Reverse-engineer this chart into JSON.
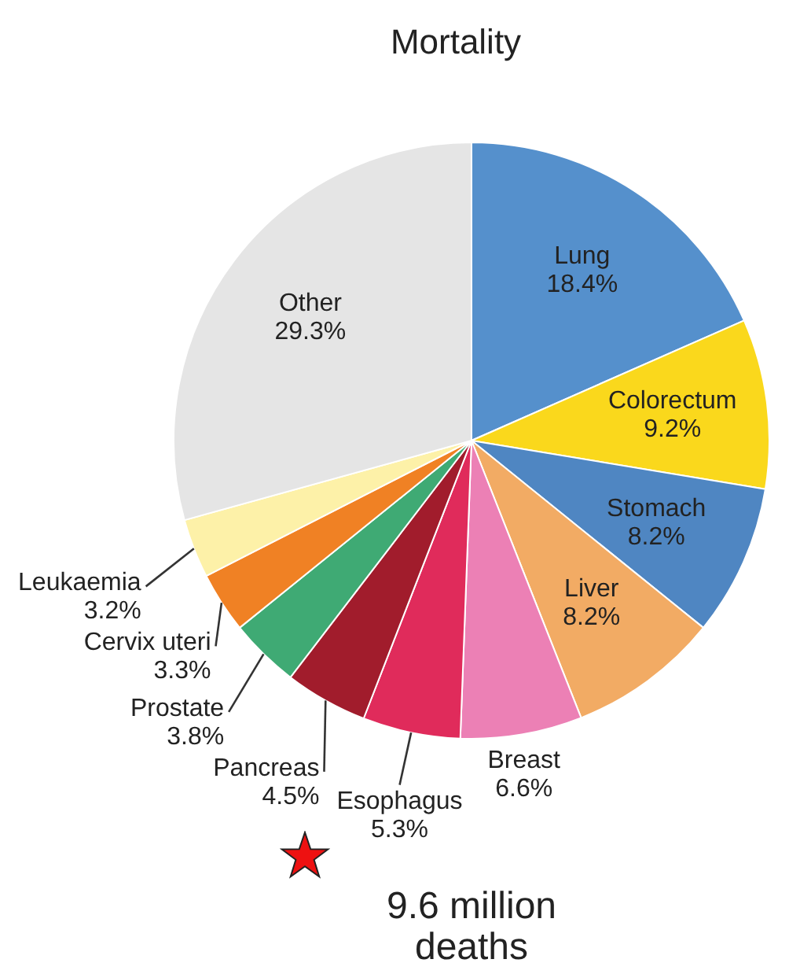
{
  "chart_data": {
    "type": "pie",
    "title": "Mortality",
    "categories": [
      "Lung",
      "Colorectum",
      "Stomach",
      "Liver",
      "Breast",
      "Esophagus",
      "Pancreas",
      "Prostate",
      "Cervix uteri",
      "Leukaemia",
      "Other"
    ],
    "values": [
      18.4,
      9.2,
      8.2,
      8.2,
      6.6,
      5.3,
      4.5,
      3.8,
      3.3,
      3.2,
      29.3
    ],
    "value_labels": [
      "18.4%",
      "9.2%",
      "8.2%",
      "8.2%",
      "6.6%",
      "5.3%",
      "4.5%",
      "3.8%",
      "3.3%",
      "3.2%",
      "29.3%"
    ],
    "colors": [
      "#5590cc",
      "#fad81c",
      "#4f86c2",
      "#f2ab64",
      "#ec80b5",
      "#e02b5b",
      "#a11c2c",
      "#3faa74",
      "#f08124",
      "#fdf1a8",
      "#e5e5e5"
    ],
    "annotations": [
      "9.6 million deaths"
    ]
  }
}
